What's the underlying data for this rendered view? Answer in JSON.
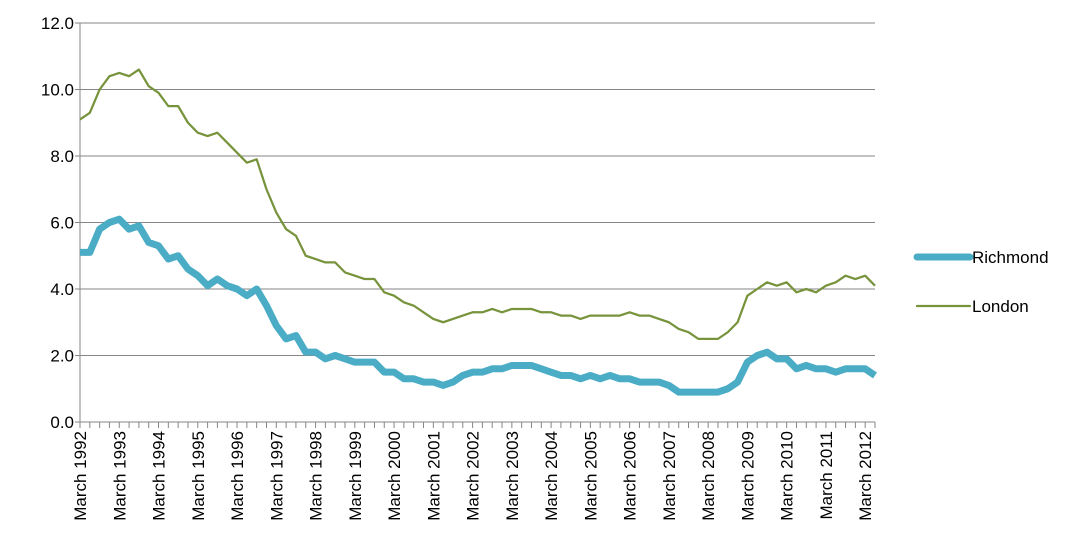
{
  "chart_data": {
    "type": "line",
    "title": "",
    "xlabel": "",
    "ylabel": "",
    "ylim": [
      0,
      12
    ],
    "yticks": [
      "0.0",
      "2.0",
      "4.0",
      "6.0",
      "8.0",
      "10.0",
      "12.0"
    ],
    "grid": true,
    "legend_position": "right",
    "x_start": "March 1992",
    "x_end": "June 2012",
    "x_frequency": "quarterly",
    "xticks": [
      "March 1992",
      "March 1993",
      "March 1994",
      "March 1995",
      "March 1996",
      "March 1997",
      "March 1998",
      "March 1999",
      "March 2000",
      "March 2001",
      "March 2002",
      "March 2003",
      "March 2004",
      "March 2005",
      "March 2006",
      "March 2007",
      "March 2008",
      "March 2009",
      "March 2010",
      "March 2011",
      "March 2012"
    ],
    "series": [
      {
        "name": "Richmond",
        "color": "#4BACC6",
        "values": [
          5.1,
          5.1,
          5.8,
          6.0,
          6.1,
          5.8,
          5.9,
          5.4,
          5.3,
          4.9,
          5.0,
          4.6,
          4.4,
          4.1,
          4.3,
          4.1,
          4.0,
          3.8,
          4.0,
          3.5,
          2.9,
          2.5,
          2.6,
          2.1,
          2.1,
          1.9,
          2.0,
          1.9,
          1.8,
          1.8,
          1.8,
          1.5,
          1.5,
          1.3,
          1.3,
          1.2,
          1.2,
          1.1,
          1.2,
          1.4,
          1.5,
          1.5,
          1.6,
          1.6,
          1.7,
          1.7,
          1.7,
          1.6,
          1.5,
          1.4,
          1.4,
          1.3,
          1.4,
          1.3,
          1.4,
          1.3,
          1.3,
          1.2,
          1.2,
          1.2,
          1.1,
          0.9,
          0.9,
          0.9,
          0.9,
          0.9,
          1.0,
          1.2,
          1.8,
          2.0,
          2.1,
          1.9,
          1.9,
          1.6,
          1.7,
          1.6,
          1.6,
          1.5,
          1.6,
          1.6,
          1.6,
          1.4
        ]
      },
      {
        "name": "London",
        "color": "#77933C",
        "values": [
          9.1,
          9.3,
          10.0,
          10.4,
          10.5,
          10.4,
          10.6,
          10.1,
          9.9,
          9.5,
          9.5,
          9.0,
          8.7,
          8.6,
          8.7,
          8.4,
          8.1,
          7.8,
          7.9,
          7.0,
          6.3,
          5.8,
          5.6,
          5.0,
          4.9,
          4.8,
          4.8,
          4.5,
          4.4,
          4.3,
          4.3,
          3.9,
          3.8,
          3.6,
          3.5,
          3.3,
          3.1,
          3.0,
          3.1,
          3.2,
          3.3,
          3.3,
          3.4,
          3.3,
          3.4,
          3.4,
          3.4,
          3.3,
          3.3,
          3.2,
          3.2,
          3.1,
          3.2,
          3.2,
          3.2,
          3.2,
          3.3,
          3.2,
          3.2,
          3.1,
          3.0,
          2.8,
          2.7,
          2.5,
          2.5,
          2.5,
          2.7,
          3.0,
          3.8,
          4.0,
          4.2,
          4.1,
          4.2,
          3.9,
          4.0,
          3.9,
          4.1,
          4.2,
          4.4,
          4.3,
          4.4,
          4.1
        ]
      }
    ]
  }
}
